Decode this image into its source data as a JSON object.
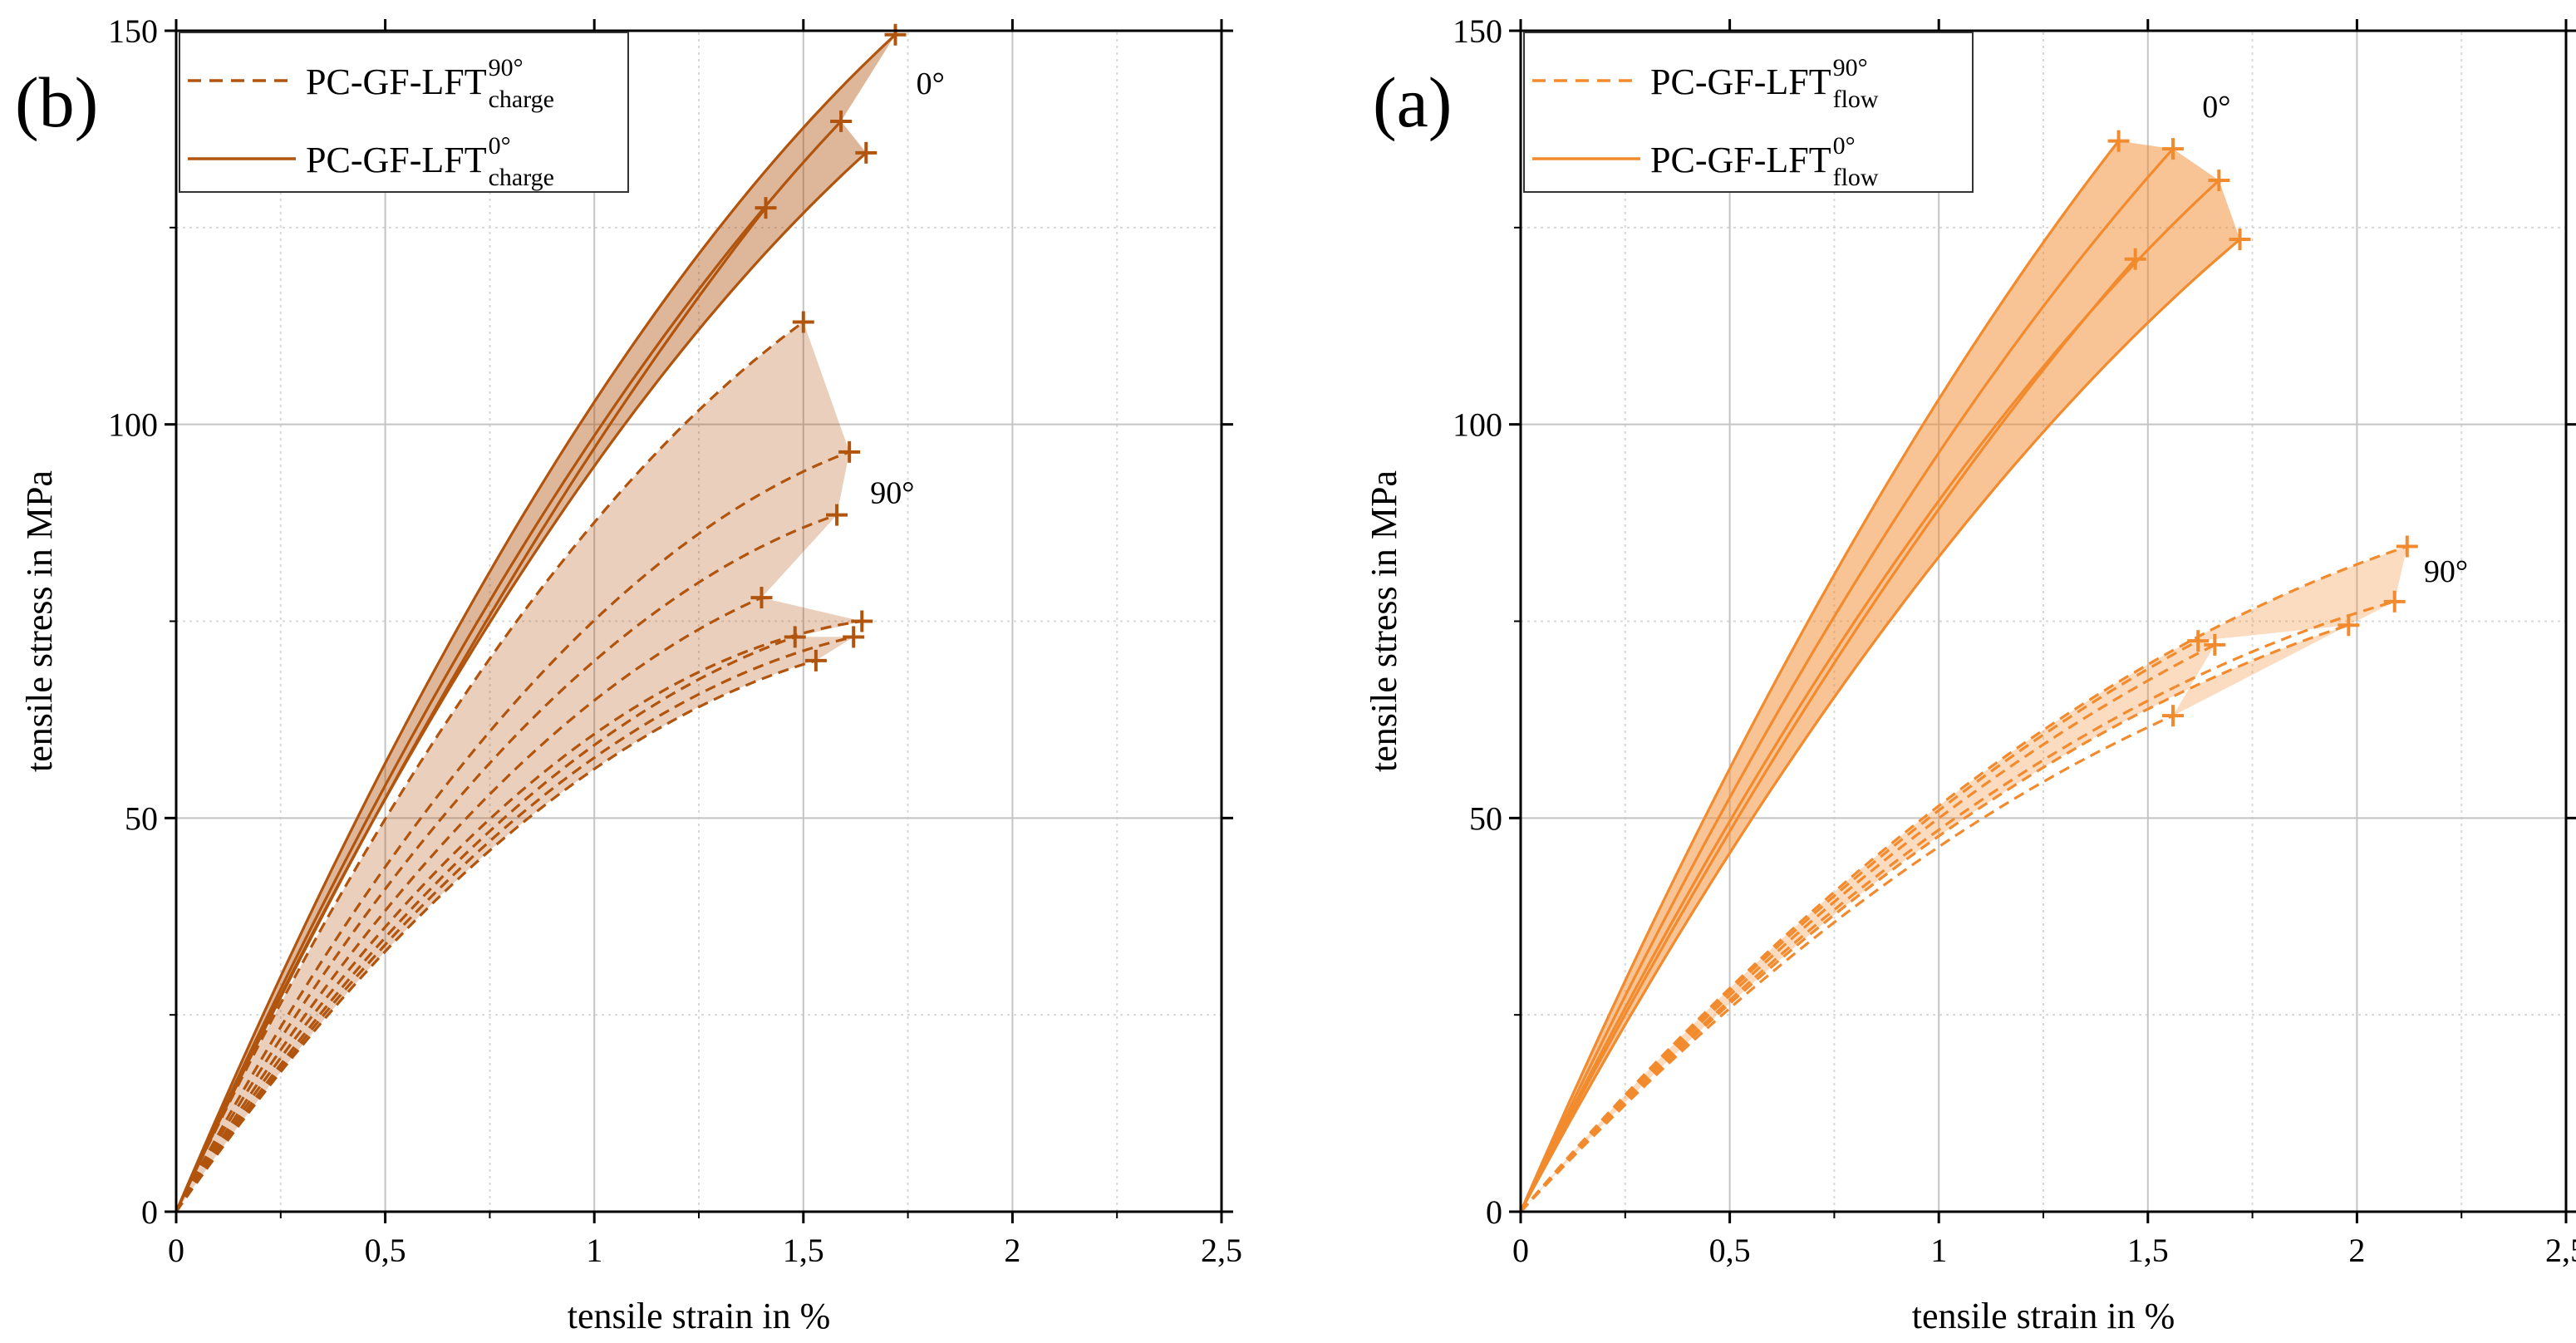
{
  "chart_data": [
    {
      "type": "line",
      "panel_label": "(b)",
      "color": "#b0540e",
      "fill_color": "#b0540e",
      "xlabel": "tensile strain in %",
      "ylabel": "tensile stress in MPa",
      "xlim": [
        0,
        2.5
      ],
      "ylim": [
        0,
        150
      ],
      "x_ticks": [
        0,
        0.5,
        1,
        1.5,
        2,
        2.5
      ],
      "x_tick_labels": [
        "0",
        "0,5",
        "1",
        "1,5",
        "2",
        "2,5"
      ],
      "y_ticks": [
        0,
        50,
        100,
        150
      ],
      "y_tick_labels": [
        "0",
        "50",
        "100",
        "150"
      ],
      "grid": true,
      "legend_position": "top-left",
      "legend": [
        {
          "style": "dashed",
          "base": "PC-GF-LFT",
          "sup": "90°",
          "sub": "charge"
        },
        {
          "style": "solid",
          "base": "PC-GF-LFT",
          "sup": "0°",
          "sub": "charge"
        }
      ],
      "annotations": [
        {
          "text": "0°",
          "x": 1.77,
          "y": 142
        },
        {
          "text": "90°",
          "x": 1.66,
          "y": 90
        }
      ],
      "series": [
        {
          "name": "0° specimen 1",
          "group": "0°",
          "style": "solid",
          "end": [
            1.72,
            149.5
          ],
          "initial_slope": 125
        },
        {
          "name": "0° specimen 2",
          "group": "0°",
          "style": "solid",
          "end": [
            1.59,
            138.5
          ],
          "initial_slope": 118
        },
        {
          "name": "0° specimen 3",
          "group": "0°",
          "style": "solid",
          "end": [
            1.65,
            134.5
          ],
          "initial_slope": 115
        },
        {
          "name": "0° specimen 4",
          "group": "0°",
          "style": "solid",
          "end": [
            1.41,
            127.5
          ],
          "initial_slope": 113
        },
        {
          "name": "90° specimen 1",
          "group": "90°",
          "style": "dashed",
          "end": [
            1.5,
            113
          ],
          "initial_slope": 112
        },
        {
          "name": "90° specimen 2",
          "group": "90°",
          "style": "dashed",
          "end": [
            1.61,
            96.5
          ],
          "initial_slope": 100
        },
        {
          "name": "90° specimen 3",
          "group": "90°",
          "style": "dashed",
          "end": [
            1.58,
            88.5
          ],
          "initial_slope": 94
        },
        {
          "name": "90° specimen 4",
          "group": "90°",
          "style": "dashed",
          "end": [
            1.4,
            78
          ],
          "initial_slope": 88
        },
        {
          "name": "90° specimen 5",
          "group": "90°",
          "style": "dashed",
          "end": [
            1.64,
            75
          ],
          "initial_slope": 84
        },
        {
          "name": "90° specimen 6",
          "group": "90°",
          "style": "dashed",
          "end": [
            1.48,
            73
          ],
          "initial_slope": 80
        },
        {
          "name": "90° specimen 7",
          "group": "90°",
          "style": "dashed",
          "end": [
            1.62,
            73
          ],
          "initial_slope": 78
        },
        {
          "name": "90° specimen 8",
          "group": "90°",
          "style": "dashed",
          "end": [
            1.53,
            70
          ],
          "initial_slope": 76
        }
      ],
      "bands": [
        {
          "group": "0°",
          "fill_opacity": 0.42,
          "upper": "0° specimen 1",
          "lower": "0° specimen 3"
        },
        {
          "group": "90°",
          "fill_opacity": 0.28,
          "upper": "90° specimen 1",
          "lower": "90° specimen 8"
        }
      ]
    },
    {
      "type": "line",
      "panel_label": "(a)",
      "color": "#f28a2e",
      "fill_color": "#f28a2e",
      "xlabel": "tensile strain in %",
      "ylabel": "tensile stress in MPa",
      "xlim": [
        0,
        2.5
      ],
      "ylim": [
        0,
        150
      ],
      "x_ticks": [
        0,
        0.5,
        1,
        1.5,
        2,
        2.5
      ],
      "x_tick_labels": [
        "0",
        "0,5",
        "1",
        "1,5",
        "2",
        "2,5"
      ],
      "y_ticks": [
        0,
        50,
        100,
        150
      ],
      "y_tick_labels": [
        "0",
        "50",
        "100",
        "150"
      ],
      "grid": true,
      "legend_position": "top-left",
      "legend": [
        {
          "style": "dashed",
          "base": "PC-GF-LFT",
          "sup": "90°",
          "sub": "flow"
        },
        {
          "style": "solid",
          "base": "PC-GF-LFT",
          "sup": "0°",
          "sub": "flow"
        }
      ],
      "annotations": [
        {
          "text": "0°",
          "x": 1.63,
          "y": 139
        },
        {
          "text": "90°",
          "x": 2.16,
          "y": 80
        }
      ],
      "series": [
        {
          "name": "0° specimen 1",
          "group": "0°",
          "style": "solid",
          "end": [
            1.43,
            136
          ],
          "initial_slope": 122
        },
        {
          "name": "0° specimen 2",
          "group": "0°",
          "style": "solid",
          "end": [
            1.56,
            135
          ],
          "initial_slope": 114
        },
        {
          "name": "0° specimen 3",
          "group": "0°",
          "style": "solid",
          "end": [
            1.67,
            131
          ],
          "initial_slope": 108
        },
        {
          "name": "0° specimen 4",
          "group": "0°",
          "style": "solid",
          "end": [
            1.47,
            121
          ],
          "initial_slope": 104
        },
        {
          "name": "0° specimen 5",
          "group": "0°",
          "style": "solid",
          "end": [
            1.72,
            123.5
          ],
          "initial_slope": 99
        },
        {
          "name": "90° specimen 1",
          "group": "90°",
          "style": "dashed",
          "end": [
            2.12,
            84.5
          ],
          "initial_slope": 62
        },
        {
          "name": "90° specimen 2",
          "group": "90°",
          "style": "dashed",
          "end": [
            1.62,
            72.5
          ],
          "initial_slope": 61
        },
        {
          "name": "90° specimen 3",
          "group": "90°",
          "style": "dashed",
          "end": [
            1.66,
            72
          ],
          "initial_slope": 60
        },
        {
          "name": "90° specimen 4",
          "group": "90°",
          "style": "dashed",
          "end": [
            2.09,
            77.5
          ],
          "initial_slope": 59
        },
        {
          "name": "90° specimen 5",
          "group": "90°",
          "style": "dashed",
          "end": [
            1.98,
            74.5
          ],
          "initial_slope": 58
        },
        {
          "name": "90° specimen 6",
          "group": "90°",
          "style": "dashed",
          "end": [
            1.56,
            63
          ],
          "initial_slope": 57
        }
      ],
      "bands": [
        {
          "group": "0°",
          "fill_opacity": 0.5,
          "upper": "0° specimen 1",
          "lower": "0° specimen 5"
        },
        {
          "group": "90°",
          "fill_opacity": 0.3,
          "upper": "90° specimen 1",
          "lower": "90° specimen 5"
        }
      ]
    }
  ]
}
